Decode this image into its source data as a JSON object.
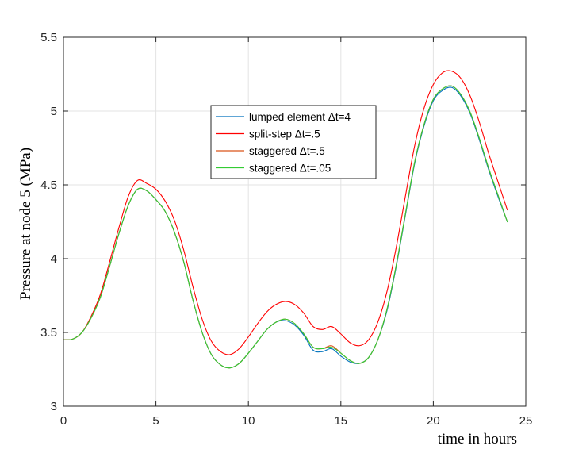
{
  "chart_data": {
    "type": "line",
    "title": "",
    "xlabel": "time in hours",
    "ylabel": "Pressure at node 5 (MPa)",
    "xlim": [
      0,
      25
    ],
    "ylim": [
      3,
      5.5
    ],
    "xticks": [
      0,
      5,
      10,
      15,
      20,
      25
    ],
    "yticks": [
      3,
      3.5,
      4,
      4.5,
      5,
      5.5
    ],
    "xtick_labels": [
      "0",
      "5",
      "10",
      "15",
      "20",
      "25"
    ],
    "ytick_labels": [
      "3",
      "3.5",
      "4",
      "4.5",
      "5",
      "5.5"
    ],
    "grid": true,
    "legend_position": "upper-center",
    "series": [
      {
        "name": "lumped element Δt=4",
        "color": "#0072BD",
        "x": [
          0,
          0.5,
          1,
          1.5,
          2,
          2.5,
          3,
          3.5,
          4,
          4.5,
          5,
          5.5,
          6,
          6.5,
          7,
          7.5,
          8,
          8.5,
          9,
          9.5,
          10,
          10.5,
          11,
          11.5,
          12,
          12.5,
          13,
          13.5,
          14,
          14.5,
          15,
          15.5,
          16,
          16.5,
          17,
          17.5,
          18,
          18.5,
          19,
          19.5,
          20,
          20.5,
          21,
          21.5,
          22,
          22.5,
          23,
          23.5,
          24
        ],
        "y": [
          3.45,
          3.455,
          3.5,
          3.6,
          3.74,
          3.95,
          4.17,
          4.36,
          4.47,
          4.46,
          4.4,
          4.32,
          4.18,
          3.98,
          3.72,
          3.5,
          3.35,
          3.28,
          3.26,
          3.29,
          3.36,
          3.44,
          3.52,
          3.57,
          3.58,
          3.55,
          3.48,
          3.38,
          3.37,
          3.39,
          3.34,
          3.3,
          3.29,
          3.33,
          3.45,
          3.65,
          3.95,
          4.3,
          4.65,
          4.9,
          5.07,
          5.14,
          5.16,
          5.1,
          4.98,
          4.8,
          4.6,
          4.42,
          4.25
        ]
      },
      {
        "name": "split-step Δt=.5",
        "color": "#FF0000",
        "x": [
          0,
          0.5,
          1,
          1.5,
          2,
          2.5,
          3,
          3.5,
          4,
          4.5,
          5,
          5.5,
          6,
          6.5,
          7,
          7.5,
          8,
          8.5,
          9,
          9.5,
          10,
          10.5,
          11,
          11.5,
          12,
          12.5,
          13,
          13.5,
          14,
          14.5,
          15,
          15.5,
          16,
          16.5,
          17,
          17.5,
          18,
          18.5,
          19,
          19.5,
          20,
          20.5,
          21,
          21.5,
          22,
          22.5,
          23,
          23.5,
          24
        ],
        "y": [
          3.45,
          3.455,
          3.5,
          3.61,
          3.76,
          3.98,
          4.21,
          4.42,
          4.53,
          4.51,
          4.47,
          4.39,
          4.26,
          4.06,
          3.81,
          3.59,
          3.44,
          3.37,
          3.35,
          3.39,
          3.47,
          3.56,
          3.64,
          3.69,
          3.71,
          3.69,
          3.63,
          3.54,
          3.52,
          3.54,
          3.49,
          3.43,
          3.41,
          3.45,
          3.57,
          3.78,
          4.08,
          4.43,
          4.77,
          5.02,
          5.18,
          5.26,
          5.27,
          5.22,
          5.1,
          4.92,
          4.71,
          4.52,
          4.33
        ]
      },
      {
        "name": "staggered Δt=.5",
        "color": "#D95319",
        "x": [
          0,
          0.5,
          1,
          1.5,
          2,
          2.5,
          3,
          3.5,
          4,
          4.5,
          5,
          5.5,
          6,
          6.5,
          7,
          7.5,
          8,
          8.5,
          9,
          9.5,
          10,
          10.5,
          11,
          11.5,
          12,
          12.5,
          13,
          13.5,
          14,
          14.5,
          15,
          15.5,
          16,
          16.5,
          17,
          17.5,
          18,
          18.5,
          19,
          19.5,
          20,
          20.5,
          21,
          21.5,
          22,
          22.5,
          23,
          23.5,
          24
        ],
        "y": [
          3.45,
          3.455,
          3.5,
          3.6,
          3.74,
          3.95,
          4.17,
          4.36,
          4.47,
          4.46,
          4.4,
          4.32,
          4.18,
          3.98,
          3.72,
          3.5,
          3.35,
          3.28,
          3.26,
          3.29,
          3.36,
          3.44,
          3.52,
          3.57,
          3.59,
          3.56,
          3.49,
          3.4,
          3.39,
          3.41,
          3.36,
          3.31,
          3.29,
          3.33,
          3.45,
          3.66,
          3.96,
          4.31,
          4.66,
          4.91,
          5.08,
          5.15,
          5.17,
          5.11,
          4.99,
          4.81,
          4.61,
          4.43,
          4.25
        ]
      },
      {
        "name": "staggered Δt=.05",
        "color": "#33CC33",
        "x": [
          0,
          0.5,
          1,
          1.5,
          2,
          2.5,
          3,
          3.5,
          4,
          4.5,
          5,
          5.5,
          6,
          6.5,
          7,
          7.5,
          8,
          8.5,
          9,
          9.5,
          10,
          10.5,
          11,
          11.5,
          12,
          12.5,
          13,
          13.5,
          14,
          14.5,
          15,
          15.5,
          16,
          16.5,
          17,
          17.5,
          18,
          18.5,
          19,
          19.5,
          20,
          20.5,
          21,
          21.5,
          22,
          22.5,
          23,
          23.5,
          24
        ],
        "y": [
          3.45,
          3.455,
          3.5,
          3.6,
          3.74,
          3.95,
          4.17,
          4.36,
          4.47,
          4.46,
          4.4,
          4.32,
          4.18,
          3.98,
          3.72,
          3.5,
          3.35,
          3.28,
          3.26,
          3.29,
          3.36,
          3.44,
          3.52,
          3.57,
          3.59,
          3.56,
          3.49,
          3.4,
          3.39,
          3.4,
          3.36,
          3.31,
          3.29,
          3.33,
          3.45,
          3.66,
          3.96,
          4.31,
          4.66,
          4.91,
          5.08,
          5.15,
          5.17,
          5.11,
          4.99,
          4.81,
          4.61,
          4.43,
          4.25
        ]
      }
    ]
  }
}
